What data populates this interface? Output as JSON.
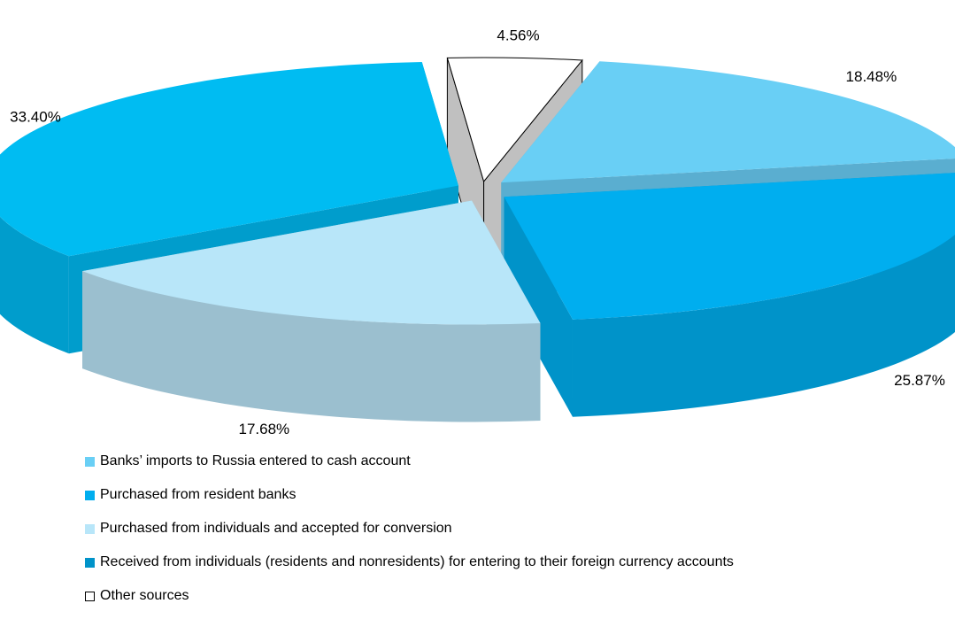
{
  "chart_data": {
    "type": "pie",
    "style": "3d-exploded",
    "title": "",
    "slices": [
      {
        "name": "Banks’ imports  to Russia entered  to cash account",
        "value": 18.48,
        "label": "18.48%",
        "color": "#69cff5",
        "side_color": "#5aaed0"
      },
      {
        "name": "Purchased from resident banks",
        "value": 25.87,
        "label": "25.87%",
        "color": "#00aeef",
        "side_color": "#0093c9"
      },
      {
        "name": "Purchased from individuals and accepted for conversion",
        "value": 17.68,
        "label": "17.68%",
        "color": "#b8e6f9",
        "side_color": "#9bbfcf"
      },
      {
        "name": "Received from individuals (residents and nonresidents) for entering to their foreign currency accounts",
        "value": 33.4,
        "label": "33.40%",
        "color": "#00bcf2",
        "side_color": "#009dcc"
      },
      {
        "name": "Other sources",
        "value": 4.56,
        "label": "4.56%",
        "color": "#ffffff",
        "side_color": "#c0c0c0"
      }
    ],
    "legend_position": "bottom"
  }
}
